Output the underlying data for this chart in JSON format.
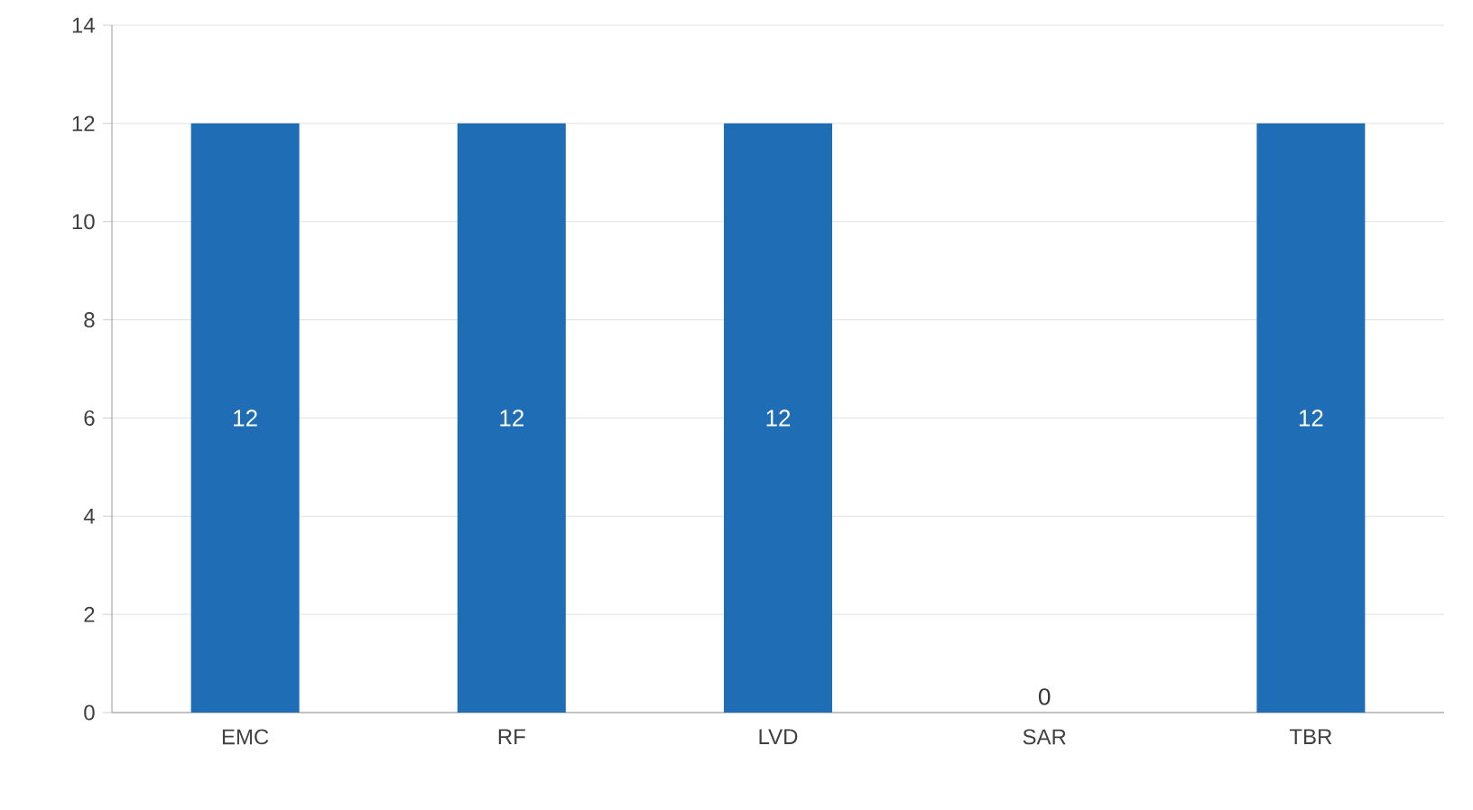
{
  "chart_data": {
    "type": "bar",
    "categories": [
      "EMC",
      "RF",
      "LVD",
      "SAR",
      "TBR"
    ],
    "values": [
      12,
      12,
      12,
      0,
      12
    ],
    "color": "#1f6db5",
    "ylim": [
      0,
      14
    ],
    "yticks": [
      0,
      2,
      4,
      6,
      8,
      10,
      12,
      14
    ],
    "grid": "y",
    "data_labels": true
  }
}
